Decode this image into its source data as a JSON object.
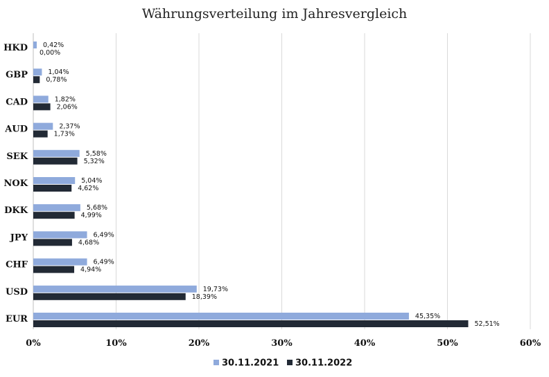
{
  "chart_data": {
    "type": "bar",
    "orientation": "horizontal",
    "title": "Währungsverteilung im Jahresvergleich",
    "xlabel": "",
    "ylabel": "",
    "xlim": [
      0,
      60
    ],
    "x_ticks": [
      "0%",
      "10%",
      "20%",
      "30%",
      "40%",
      "50%",
      "60%"
    ],
    "grid": true,
    "legend_position": "bottom",
    "categories": [
      "HKD",
      "GBP",
      "CAD",
      "AUD",
      "SEK",
      "NOK",
      "DKK",
      "JPY",
      "CHF",
      "USD",
      "EUR"
    ],
    "series": [
      {
        "name": "30.11.2021",
        "color": "#8faadc",
        "values": [
          0.42,
          1.04,
          1.82,
          2.37,
          5.58,
          5.04,
          5.68,
          6.49,
          6.49,
          19.73,
          45.35
        ],
        "labels": [
          "0,42%",
          "1,04%",
          "1,82%",
          "2,37%",
          "5,58%",
          "5,04%",
          "5,68%",
          "6,49%",
          "6,49%",
          "19,73%",
          "45,35%"
        ]
      },
      {
        "name": "30.11.2022",
        "color": "#222a35",
        "values": [
          0.0,
          0.78,
          2.06,
          1.73,
          5.32,
          4.62,
          4.99,
          4.68,
          4.94,
          18.39,
          52.51
        ],
        "labels": [
          "0,00%",
          "0,78%",
          "2,06%",
          "1,73%",
          "5,32%",
          "4,62%",
          "4,99%",
          "4,68%",
          "4,94%",
          "18,39%",
          "52,51%"
        ]
      }
    ]
  }
}
